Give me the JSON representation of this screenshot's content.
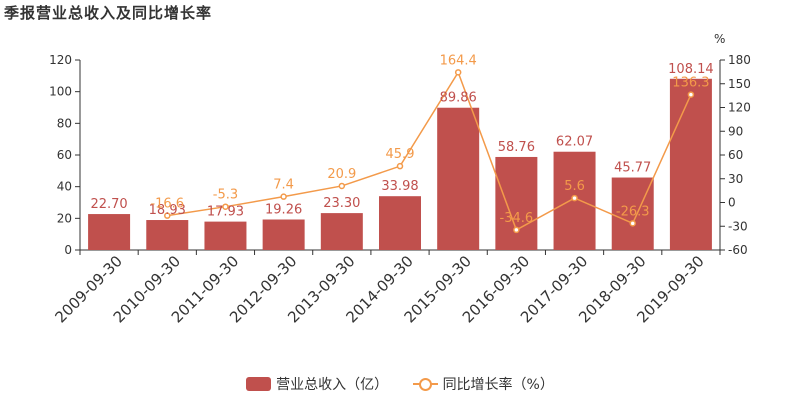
{
  "title": "季报营业总收入及同比增长率",
  "legend": {
    "revenue": "营业总收入（亿）",
    "growth": "同比增长率（%）"
  },
  "colors": {
    "bar": "#c0504d",
    "line": "#f39a4a",
    "axis": "#333333",
    "barLabel": "#c0504d",
    "lineLabel": "#f39a4a"
  },
  "chart_data": {
    "type": "bar",
    "categories": [
      "2009-09-30",
      "2010-09-30",
      "2011-09-30",
      "2012-09-30",
      "2013-09-30",
      "2014-09-30",
      "2015-09-30",
      "2016-09-30",
      "2017-09-30",
      "2018-09-30",
      "2019-09-30"
    ],
    "series": [
      {
        "name": "营业总收入（亿）",
        "type": "bar",
        "axis": "left",
        "values": [
          22.7,
          18.93,
          17.93,
          19.26,
          23.3,
          33.98,
          89.86,
          58.76,
          62.07,
          45.77,
          108.14
        ],
        "labels": [
          "22.70",
          "18.93",
          "17.93",
          "19.26",
          "23.30",
          "33.98",
          "89.86",
          "58.76",
          "62.07",
          "45.77",
          "108.14"
        ]
      },
      {
        "name": "同比增长率（%）",
        "type": "line",
        "axis": "right",
        "values": [
          null,
          -16.6,
          -5.3,
          7.4,
          20.9,
          45.9,
          164.4,
          -34.6,
          5.6,
          -26.3,
          136.3
        ],
        "labels": [
          "",
          "-16.6",
          "-5.3",
          "7.4",
          "20.9",
          "45.9",
          "164.4",
          "-34.6",
          "5.6",
          "-26.3",
          "136.3"
        ]
      }
    ],
    "y_left": {
      "min": 0,
      "max": 120,
      "ticks": [
        "0",
        "20",
        "40",
        "60",
        "80",
        "100",
        "120"
      ]
    },
    "y_right": {
      "min": -60,
      "max": 180,
      "unit": "%",
      "ticks": [
        "-60",
        "-30",
        "0",
        "30",
        "60",
        "90",
        "120",
        "150",
        "180"
      ]
    },
    "grid": false,
    "legend_position": "bottom"
  }
}
